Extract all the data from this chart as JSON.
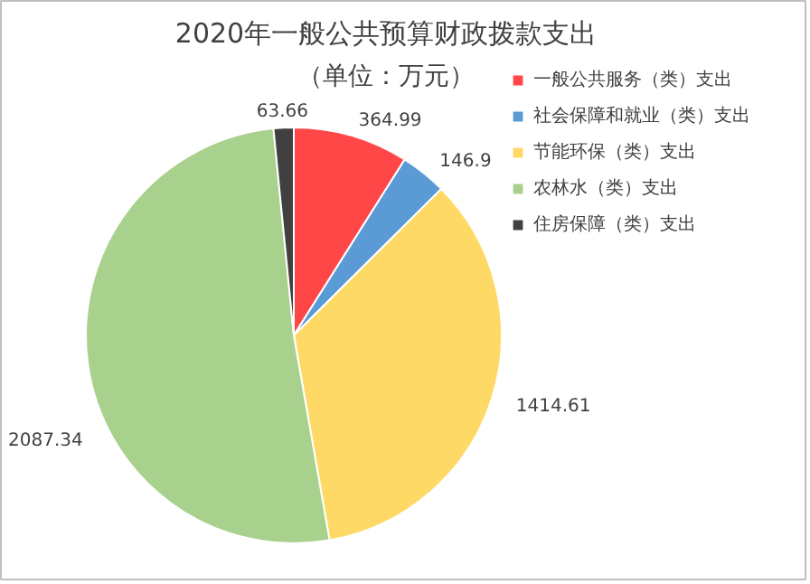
{
  "chart_data": {
    "type": "pie",
    "title": "2020年一般公共预算财政拨款支出",
    "subtitle": "（单位：万元）",
    "categories": [
      "一般公共服务（类）支出",
      "社会保障和就业（类）支出",
      "节能环保（类）支出",
      "农林水（类）支出",
      "住房保障（类）支出"
    ],
    "values": [
      364.99,
      146.9,
      1414.61,
      2087.34,
      63.66
    ],
    "colors": [
      "#ff4747",
      "#5b9bd5",
      "#ffd966",
      "#a9d18e",
      "#404040"
    ],
    "data_labels": true,
    "legend": "right"
  }
}
